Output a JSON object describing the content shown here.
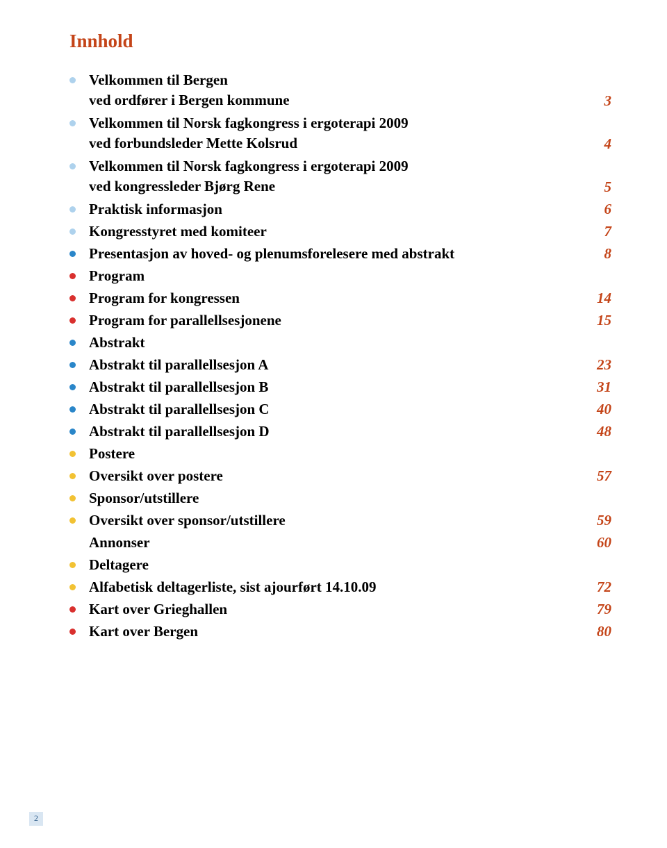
{
  "title": "Innhold",
  "colors": {
    "title": "#c44418",
    "page_number": "#c44418",
    "text": "#000000",
    "bullet_lightblue": "#aed2ed",
    "bullet_blue": "#2a86c9",
    "bullet_red": "#d9302e",
    "bullet_yellow": "#f2c233",
    "footer_bg": "#d9e6f2",
    "footer_text": "#34628c"
  },
  "toc": [
    {
      "bullet": "#aed2ed",
      "text": "Velkommen til Bergen",
      "sub": "ved ordfører i Bergen kommune",
      "page": "3"
    },
    {
      "bullet": "#aed2ed",
      "text": "Velkommen til Norsk fagkongress i ergoterapi 2009",
      "sub": "ved forbundsleder Mette Kolsrud",
      "page": "4"
    },
    {
      "bullet": "#aed2ed",
      "text": "Velkommen til Norsk fagkongress i ergoterapi 2009",
      "sub": "ved kongressleder Bjørg Rene",
      "page": "5"
    },
    {
      "bullet": "#aed2ed",
      "text": "Praktisk informasjon",
      "page": "6"
    },
    {
      "bullet": "#aed2ed",
      "text": "Kongresstyret med komiteer",
      "page": "7"
    },
    {
      "bullet": "#2a86c9",
      "text": "Presentasjon av hoved- og plenumsforelesere med abstrakt",
      "page": "8"
    },
    {
      "bullet": "#d9302e",
      "text": "Program",
      "page": ""
    },
    {
      "bullet": "#d9302e",
      "text": "Program for kongressen",
      "page": "14"
    },
    {
      "bullet": "#d9302e",
      "text": "Program for parallellsesjonene",
      "page": "15"
    },
    {
      "bullet": "#2a86c9",
      "text": "Abstrakt",
      "page": ""
    },
    {
      "bullet": "#2a86c9",
      "text": "Abstrakt til parallellsesjon A",
      "page": "23"
    },
    {
      "bullet": "#2a86c9",
      "text": "Abstrakt til parallellsesjon B",
      "page": "31"
    },
    {
      "bullet": "#2a86c9",
      "text": "Abstrakt til parallellsesjon C",
      "page": "40"
    },
    {
      "bullet": "#2a86c9",
      "text": "Abstrakt til parallellsesjon D",
      "page": "48"
    },
    {
      "bullet": "#f2c233",
      "text": "Postere",
      "page": ""
    },
    {
      "bullet": "#f2c233",
      "text": "Oversikt over postere",
      "page": "57"
    },
    {
      "bullet": "#f2c233",
      "text": "Sponsor/utstillere",
      "page": ""
    },
    {
      "bullet": "#f2c233",
      "text": "Oversikt over sponsor/utstillere",
      "page": "59"
    },
    {
      "bullet": "",
      "text": "Annonser",
      "page": "60"
    },
    {
      "bullet": "#f2c233",
      "text": "Deltagere",
      "page": ""
    },
    {
      "bullet": "#f2c233",
      "text": "Alfabetisk deltagerliste, sist ajourført 14.10.09",
      "page": "72"
    },
    {
      "bullet": "#d9302e",
      "text": "Kart over Grieghallen",
      "page": "79"
    },
    {
      "bullet": "#d9302e",
      "text": "Kart over Bergen",
      "page": "80"
    }
  ],
  "footer_page": "2"
}
